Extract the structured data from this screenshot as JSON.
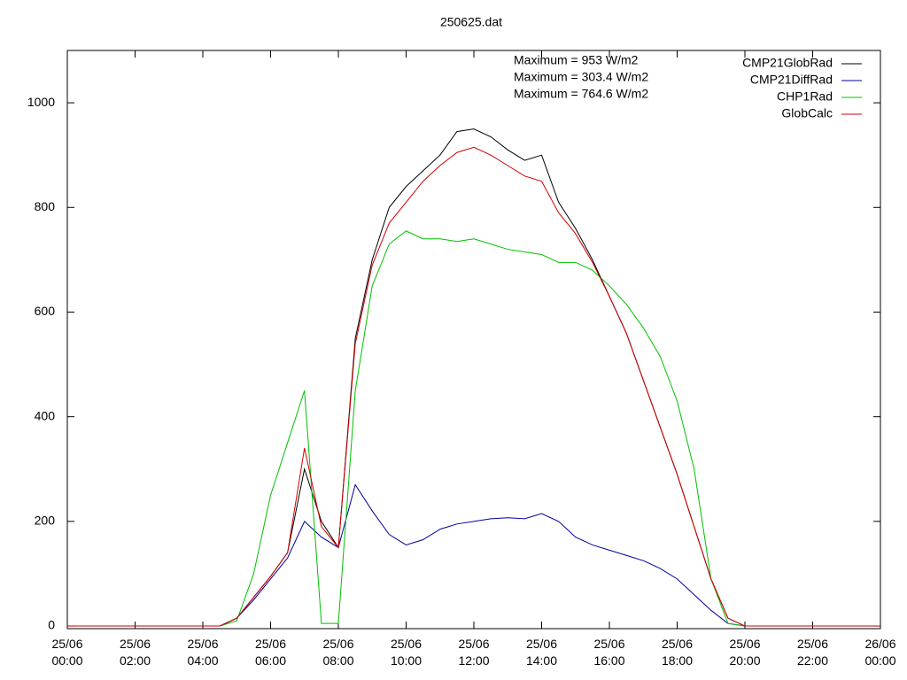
{
  "chart_data": {
    "type": "line",
    "title": "250625.dat",
    "annotations": [
      "Maximum = 953 W/m2",
      "Maximum = 303.4 W/m2",
      "Maximum = 764.6 W/m2"
    ],
    "x": [
      "25/06 00:00",
      "25/06 00:30",
      "25/06 01:00",
      "25/06 01:30",
      "25/06 02:00",
      "25/06 02:30",
      "25/06 03:00",
      "25/06 03:30",
      "25/06 04:00",
      "25/06 04:30",
      "25/06 05:00",
      "25/06 05:30",
      "25/06 06:00",
      "25/06 06:30",
      "25/06 07:00",
      "25/06 07:30",
      "25/06 08:00",
      "25/06 08:30",
      "25/06 09:00",
      "25/06 09:30",
      "25/06 10:00",
      "25/06 10:30",
      "25/06 11:00",
      "25/06 11:30",
      "25/06 12:00",
      "25/06 12:30",
      "25/06 13:00",
      "25/06 13:30",
      "25/06 14:00",
      "25/06 14:30",
      "25/06 15:00",
      "25/06 15:30",
      "25/06 16:00",
      "25/06 16:30",
      "25/06 17:00",
      "25/06 17:30",
      "25/06 18:00",
      "25/06 18:30",
      "25/06 19:00",
      "25/06 19:30",
      "25/06 20:00",
      "25/06 20:30",
      "25/06 21:00",
      "25/06 21:30",
      "25/06 22:00",
      "25/06 22:30",
      "25/06 23:00",
      "25/06 23:30",
      "26/06 00:00"
    ],
    "series": [
      {
        "name": "CMP21GlobRad",
        "color": "#000000",
        "values": [
          0,
          0,
          0,
          0,
          0,
          0,
          0,
          0,
          0,
          0,
          15,
          55,
          95,
          140,
          300,
          200,
          150,
          550,
          700,
          800,
          840,
          870,
          900,
          945,
          950,
          935,
          910,
          890,
          900,
          810,
          760,
          700,
          630,
          560,
          470,
          380,
          290,
          190,
          90,
          15,
          0,
          0,
          0,
          0,
          0,
          0,
          0,
          0,
          0
        ]
      },
      {
        "name": "CMP21DiffRad",
        "color": "#0000a0",
        "values": [
          0,
          0,
          0,
          0,
          0,
          0,
          0,
          0,
          0,
          0,
          15,
          50,
          90,
          130,
          200,
          170,
          150,
          270,
          220,
          175,
          155,
          165,
          185,
          195,
          200,
          205,
          207,
          205,
          215,
          200,
          170,
          155,
          145,
          135,
          125,
          110,
          90,
          60,
          30,
          5,
          0,
          0,
          0,
          0,
          0,
          0,
          0,
          0,
          0
        ]
      },
      {
        "name": "CHP1Rad",
        "color": "#00c000",
        "values": [
          0,
          0,
          0,
          0,
          0,
          0,
          0,
          0,
          0,
          0,
          10,
          100,
          250,
          350,
          450,
          5,
          5,
          450,
          650,
          730,
          755,
          740,
          740,
          735,
          740,
          730,
          720,
          715,
          710,
          695,
          695,
          680,
          650,
          615,
          570,
          515,
          430,
          300,
          90,
          5,
          0,
          0,
          0,
          0,
          0,
          0,
          0,
          0,
          0
        ]
      },
      {
        "name": "GlobCalc",
        "color": "#d00000",
        "values": [
          0,
          0,
          0,
          0,
          0,
          0,
          0,
          0,
          0,
          0,
          15,
          55,
          95,
          140,
          340,
          190,
          150,
          540,
          690,
          770,
          810,
          850,
          880,
          905,
          915,
          900,
          880,
          860,
          850,
          790,
          750,
          695,
          630,
          560,
          470,
          380,
          290,
          190,
          90,
          15,
          0,
          0,
          0,
          0,
          0,
          0,
          0,
          0,
          0
        ]
      }
    ],
    "xlim": [
      "25/06 00:00",
      "26/06 00:00"
    ],
    "xticks": [
      "25/06 00:00",
      "25/06 02:00",
      "25/06 04:00",
      "25/06 06:00",
      "25/06 08:00",
      "25/06 10:00",
      "25/06 12:00",
      "25/06 14:00",
      "25/06 16:00",
      "25/06 18:00",
      "25/06 20:00",
      "25/06 22:00",
      "26/06 00:00"
    ],
    "ylim": [
      -5,
      1100
    ],
    "yticks": [
      0,
      200,
      400,
      600,
      800,
      1000
    ],
    "grid": false
  }
}
